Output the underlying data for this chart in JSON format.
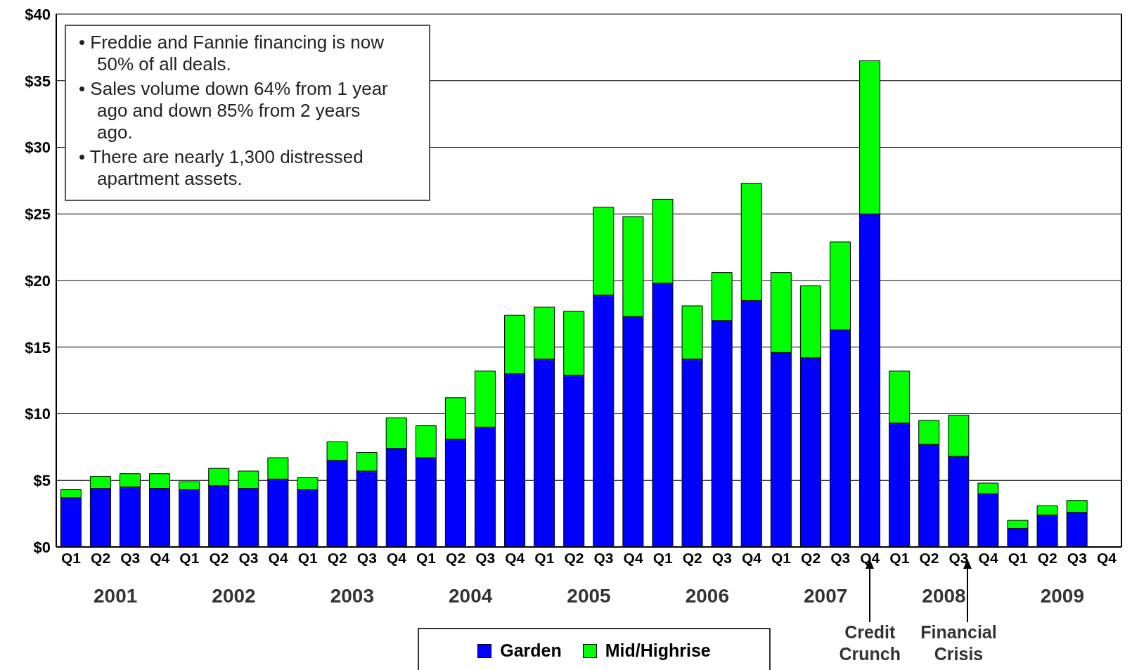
{
  "chart_data": {
    "type": "bar",
    "stacked": true,
    "categories": [
      "Q1",
      "Q2",
      "Q3",
      "Q4",
      "Q1",
      "Q2",
      "Q3",
      "Q4",
      "Q1",
      "Q2",
      "Q3",
      "Q4",
      "Q1",
      "Q2",
      "Q3",
      "Q4",
      "Q1",
      "Q2",
      "Q3",
      "Q4",
      "Q1",
      "Q2",
      "Q3",
      "Q4",
      "Q1",
      "Q2",
      "Q3",
      "Q4",
      "Q1",
      "Q2",
      "Q3",
      "Q4",
      "Q1",
      "Q2",
      "Q3",
      "Q4"
    ],
    "series": [
      {
        "name": "Garden",
        "color": "#0000ff",
        "values": [
          3.7,
          4.4,
          4.5,
          4.4,
          4.3,
          4.6,
          4.4,
          5.1,
          4.3,
          6.5,
          5.7,
          7.4,
          6.7,
          8.1,
          9.0,
          13.0,
          14.1,
          12.9,
          18.9,
          17.3,
          19.8,
          14.1,
          17.0,
          18.5,
          14.6,
          14.2,
          16.3,
          25.0,
          9.3,
          7.7,
          6.8,
          4.0,
          1.4,
          2.4,
          2.6,
          null
        ]
      },
      {
        "name": "Mid/Highrise",
        "color": "#00ff00",
        "values": [
          0.6,
          0.9,
          1.0,
          1.1,
          0.6,
          1.3,
          1.3,
          1.6,
          0.9,
          1.4,
          1.4,
          2.3,
          2.4,
          3.1,
          4.2,
          4.4,
          3.9,
          4.8,
          6.6,
          7.5,
          6.3,
          4.0,
          3.6,
          8.8,
          6.0,
          5.4,
          6.6,
          11.5,
          3.9,
          1.8,
          3.1,
          0.8,
          0.6,
          0.7,
          0.9,
          null
        ]
      }
    ],
    "ylim": [
      0,
      40
    ],
    "yticks": [
      {
        "value": 0,
        "label": "$0"
      },
      {
        "value": 5,
        "label": "$5"
      },
      {
        "value": 10,
        "label": "$10"
      },
      {
        "value": 15,
        "label": "$15"
      },
      {
        "value": 20,
        "label": "$20"
      },
      {
        "value": 25,
        "label": "$25"
      },
      {
        "value": 30,
        "label": "$30"
      },
      {
        "value": 35,
        "label": "$35"
      },
      {
        "value": 40,
        "label": "$40"
      }
    ],
    "grid": "y",
    "legend": "bottom",
    "annotations": [
      "• Freddie and Fannie financing is now 50% of all deals.",
      "• Sales volume down 64% from 1 year ago and down 85% from 2 years ago.",
      "• There are nearly 1,300 distressed apartment assets.",
      "2001",
      "2002",
      "2003",
      "2004",
      "2005",
      "2006",
      "2007",
      "2008",
      "2009",
      "Credit Crunch",
      "Financial Crisis"
    ]
  }
}
